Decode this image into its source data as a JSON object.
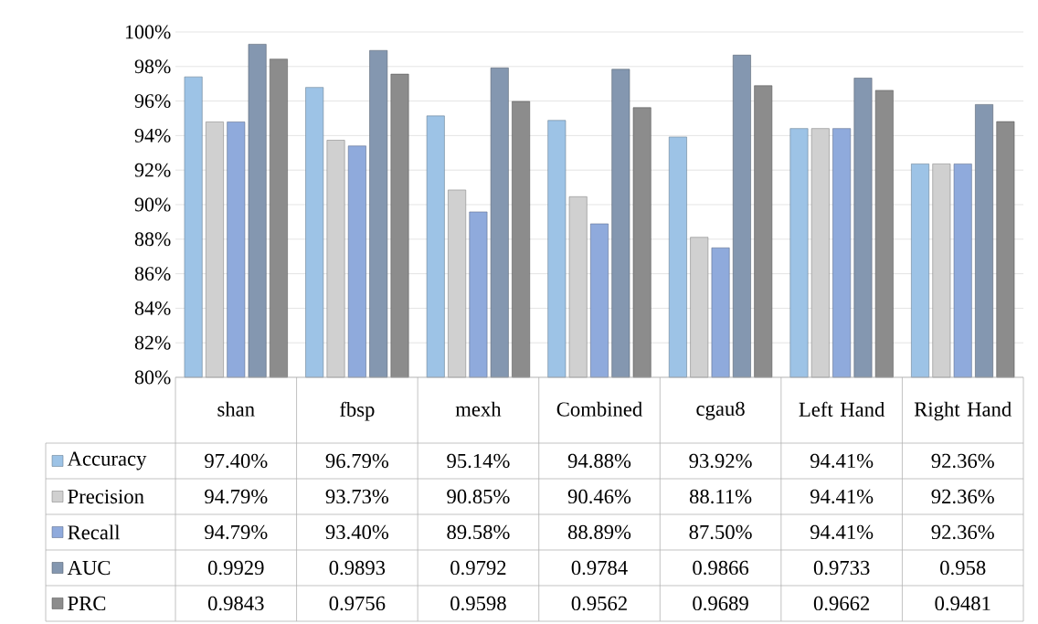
{
  "chart_data": {
    "type": "bar",
    "categories": [
      "shan",
      "fbsp",
      "mexh",
      "Combined",
      "cgau8",
      "Left Hand",
      "Right Hand"
    ],
    "series": [
      {
        "name": "Accuracy",
        "color": "#9dc3e6",
        "values": [
          0.974,
          0.9679,
          0.9514,
          0.9488,
          0.9392,
          0.9441,
          0.9236
        ],
        "value_labels": [
          "97.40%",
          "96.79%",
          "95.14%",
          "94.88%",
          "93.92%",
          "94.41%",
          "92.36%"
        ]
      },
      {
        "name": "Precision",
        "color": "#d0d0d0",
        "values": [
          0.9479,
          0.9373,
          0.9085,
          0.9046,
          0.8811,
          0.9441,
          0.9236
        ],
        "value_labels": [
          "94.79%",
          "93.73%",
          "90.85%",
          "90.46%",
          "88.11%",
          "94.41%",
          "92.36%"
        ]
      },
      {
        "name": "Recall",
        "color": "#8faadc",
        "values": [
          0.9479,
          0.934,
          0.8958,
          0.8889,
          0.875,
          0.9441,
          0.9236
        ],
        "value_labels": [
          "94.79%",
          "93.40%",
          "89.58%",
          "88.89%",
          "87.50%",
          "94.41%",
          "92.36%"
        ]
      },
      {
        "name": "AUC",
        "color": "#8497b0",
        "values": [
          0.9929,
          0.9893,
          0.9792,
          0.9784,
          0.9866,
          0.9733,
          0.958
        ],
        "value_labels": [
          "0.9929",
          "0.9893",
          "0.9792",
          "0.9784",
          "0.9866",
          "0.9733",
          "0.958"
        ]
      },
      {
        "name": "PRC",
        "color": "#8c8c8c",
        "values": [
          0.9843,
          0.9756,
          0.9598,
          0.9562,
          0.9689,
          0.9662,
          0.9481
        ],
        "value_labels": [
          "0.9843",
          "0.9756",
          "0.9598",
          "0.9562",
          "0.9689",
          "0.9662",
          "0.9481"
        ]
      }
    ],
    "ylim": [
      0.8,
      1.0
    ],
    "yticks": [
      {
        "value": 0.8,
        "label": "80%"
      },
      {
        "value": 0.82,
        "label": "82%"
      },
      {
        "value": 0.84,
        "label": "84%"
      },
      {
        "value": 0.86,
        "label": "86%"
      },
      {
        "value": 0.88,
        "label": "88%"
      },
      {
        "value": 0.9,
        "label": "90%"
      },
      {
        "value": 0.92,
        "label": "92%"
      },
      {
        "value": 0.94,
        "label": "94%"
      },
      {
        "value": 0.96,
        "label": "96%"
      },
      {
        "value": 0.98,
        "label": "98%"
      },
      {
        "value": 1.0,
        "label": "100%"
      }
    ],
    "grid": "y",
    "legend": "left"
  }
}
